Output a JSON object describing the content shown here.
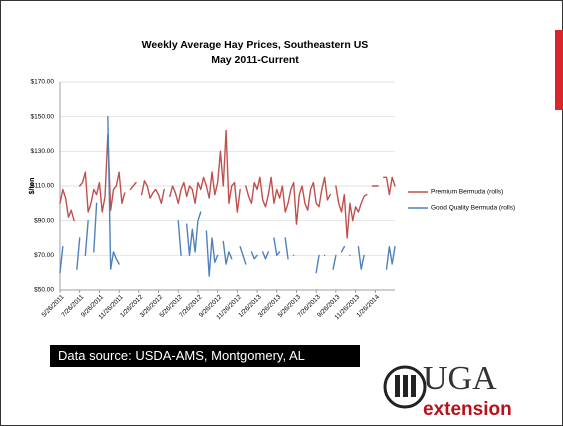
{
  "chart_data": {
    "type": "line",
    "title": "Weekly Average Hay Prices, Southeastern US",
    "subtitle": "May 2011-Current",
    "y_label": "$/ton",
    "categories": [
      "5/26/2011",
      null,
      null,
      null,
      null,
      null,
      null,
      "7/26/2011",
      null,
      null,
      null,
      null,
      null,
      null,
      "9/26/2011",
      null,
      null,
      null,
      null,
      null,
      null,
      "11/26/2011",
      null,
      null,
      null,
      null,
      null,
      null,
      "1/26/2012",
      null,
      null,
      null,
      null,
      null,
      null,
      "3/26/2012",
      null,
      null,
      null,
      null,
      null,
      null,
      "5/26/2012",
      null,
      null,
      null,
      null,
      null,
      null,
      "7/26/2012",
      null,
      null,
      null,
      null,
      null,
      null,
      "9/26/2012",
      null,
      null,
      null,
      null,
      null,
      null,
      "11/26/2012",
      null,
      null,
      null,
      null,
      null,
      null,
      "1/26/2013",
      null,
      null,
      null,
      null,
      null,
      null,
      "3/26/2013",
      null,
      null,
      null,
      null,
      null,
      null,
      "5/26/2013",
      null,
      null,
      null,
      null,
      null,
      null,
      "7/26/2013",
      null,
      null,
      null,
      null,
      null,
      null,
      "9/26/2013",
      null,
      null,
      null,
      null,
      null,
      null,
      "11/26/2013",
      null,
      null,
      null,
      null,
      null,
      null,
      "1/26/2014",
      null,
      null,
      null,
      null,
      null,
      null,
      null
    ],
    "series": [
      {
        "name": "Premium Bermuda (rolls)",
        "color": "#c0504d",
        "values": [
          100,
          108,
          103,
          92,
          96,
          90,
          null,
          110,
          112,
          118,
          95,
          100,
          108,
          105,
          112,
          95,
          104,
          140,
          96,
          108,
          110,
          118,
          100,
          106,
          null,
          108,
          110,
          112,
          null,
          105,
          113,
          110,
          103,
          106,
          108,
          105,
          100,
          108,
          null,
          104,
          110,
          106,
          100,
          108,
          112,
          104,
          110,
          108,
          100,
          112,
          108,
          115,
          110,
          103,
          118,
          105,
          112,
          130,
          110,
          142,
          100,
          110,
          112,
          95,
          108,
          null,
          110,
          104,
          100,
          112,
          108,
          115,
          102,
          98,
          105,
          115,
          100,
          108,
          103,
          110,
          95,
          100,
          108,
          112,
          88,
          105,
          110,
          100,
          96,
          108,
          112,
          100,
          98,
          108,
          115,
          102,
          105,
          null,
          110,
          100,
          95,
          105,
          80,
          100,
          90,
          98,
          95,
          100,
          104,
          105,
          null,
          110,
          110,
          110,
          null,
          115,
          115,
          105,
          115,
          110
        ]
      },
      {
        "name": "Good Quality Bermuda (rolls)",
        "color": "#4f81bd",
        "values": [
          60,
          75,
          null,
          null,
          null,
          null,
          62,
          80,
          null,
          70,
          90,
          null,
          72,
          100,
          null,
          null,
          null,
          150,
          62,
          72,
          68,
          65,
          null,
          null,
          null,
          null,
          null,
          null,
          null,
          null,
          null,
          null,
          null,
          null,
          null,
          null,
          null,
          null,
          null,
          null,
          null,
          null,
          90,
          70,
          null,
          88,
          70,
          85,
          72,
          90,
          95,
          null,
          84,
          58,
          80,
          66,
          70,
          null,
          78,
          65,
          72,
          68,
          null,
          null,
          75,
          70,
          65,
          null,
          72,
          68,
          70,
          null,
          72,
          68,
          72,
          null,
          80,
          70,
          72,
          null,
          80,
          68,
          null,
          70,
          null,
          null,
          null,
          null,
          null,
          null,
          null,
          60,
          70,
          null,
          70,
          null,
          null,
          62,
          70,
          null,
          72,
          75,
          null,
          70,
          null,
          null,
          75,
          62,
          70,
          null,
          null,
          null,
          null,
          null,
          null,
          null,
          62,
          75,
          65,
          75
        ]
      }
    ],
    "ylim": [
      50,
      170
    ],
    "yticks": [
      {
        "value": 50,
        "label": "$50.00"
      },
      {
        "value": 70,
        "label": "$70.00"
      },
      {
        "value": 90,
        "label": "$90.00"
      },
      {
        "value": 110,
        "label": "$110.00"
      },
      {
        "value": 130,
        "label": "$130.00"
      },
      {
        "value": 150,
        "label": "$150.00"
      },
      {
        "value": 170,
        "label": "$170.00"
      }
    ],
    "grid": true,
    "legend": "right",
    "source": "Data source: USDA-AMS, Montgomery, AL",
    "logo": {
      "text": "UGA",
      "subtext": "extension"
    }
  }
}
